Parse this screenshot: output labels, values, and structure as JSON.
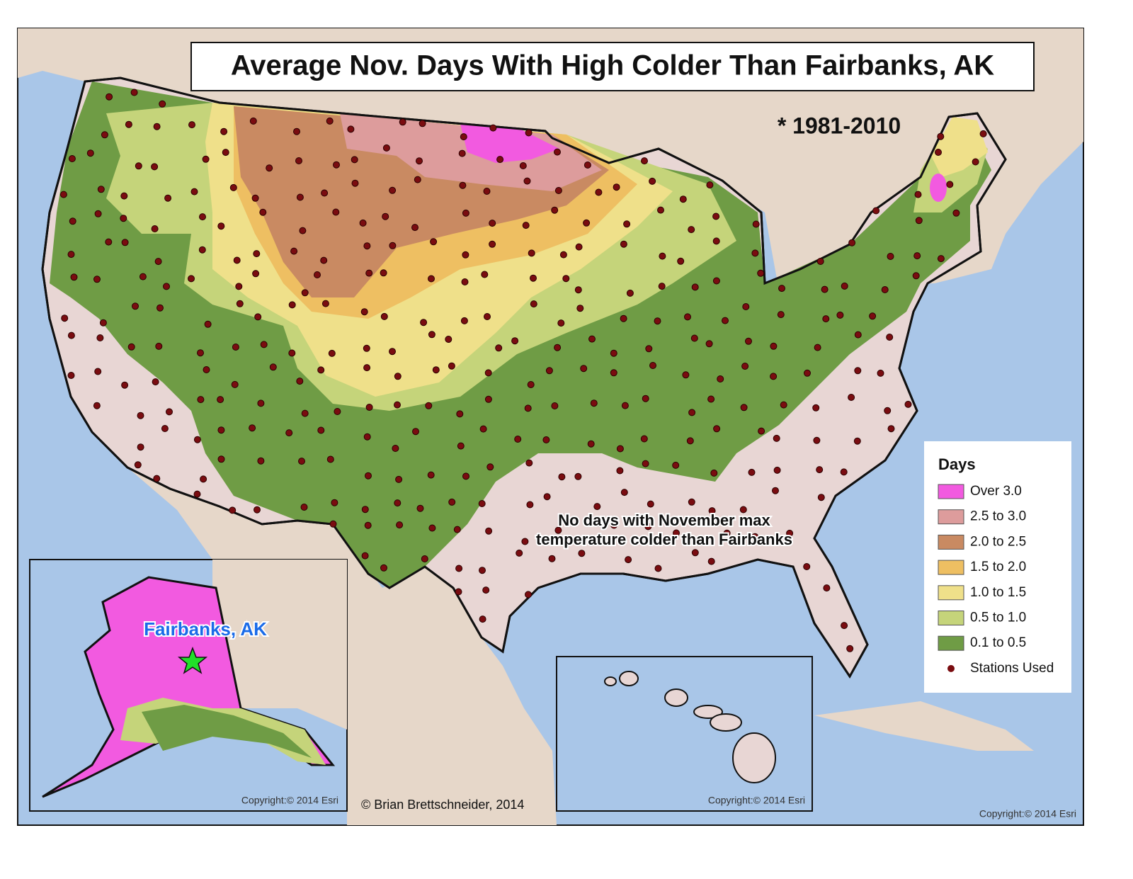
{
  "header": {
    "title": "Average Nov. Days With High Colder Than Fairbanks, AK",
    "period": "* 1981-2010"
  },
  "legend": {
    "title": "Days",
    "items": [
      {
        "label": "Over 3.0",
        "color": "#f25ae0"
      },
      {
        "label": "2.5 to 3.0",
        "color": "#dd9c9c"
      },
      {
        "label": "2.0 to 2.5",
        "color": "#c98a62"
      },
      {
        "label": "1.5 to 2.0",
        "color": "#eebf62"
      },
      {
        "label": "1.0 to 1.5",
        "color": "#efe08a"
      },
      {
        "label": "0.5 to 1.0",
        "color": "#c5d47a"
      },
      {
        "label": "0.1 to 0.5",
        "color": "#6f9c45"
      },
      {
        "label": "Stations Used",
        "color": "#7a0c10",
        "symbol": "dot"
      }
    ]
  },
  "annotation": {
    "lines": [
      "No days with November max",
      "temperature colder than Fairbanks"
    ]
  },
  "alaska_inset": {
    "label": "Fairbanks, AK",
    "copyright": "Copyright:© 2014 Esri"
  },
  "hawaii_inset": {
    "copyright": "Copyright:© 2014 Esri"
  },
  "footer": {
    "author": "© Brian Brettschneider, 2014",
    "copyright": "Copyright:© 2014 Esri"
  }
}
